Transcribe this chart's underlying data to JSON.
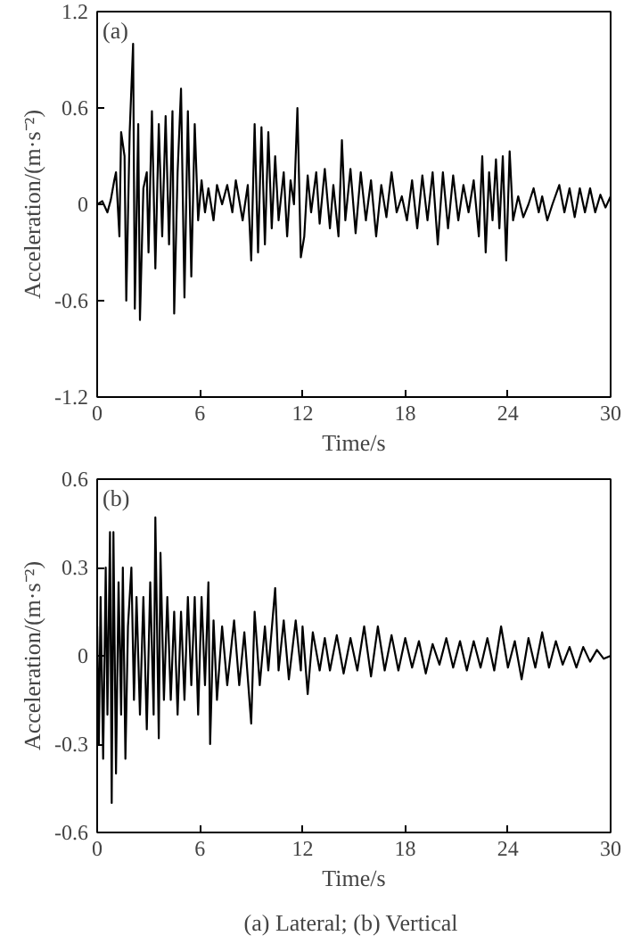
{
  "chart_data": [
    {
      "type": "line",
      "xlabel": "Time/s",
      "ylabel": "Acceleration/(m·s⁻²)",
      "annotations": [
        "(a)"
      ],
      "xlim": [
        0,
        30
      ],
      "ylim": [
        -1.2,
        1.2
      ],
      "xticks": [
        0,
        6,
        12,
        18,
        24,
        30
      ],
      "yticks": [
        -1.2,
        -0.6,
        0,
        0.6,
        1.2
      ],
      "grid": false,
      "marker": "none",
      "line_style": "solid",
      "series": [
        {
          "color": "#000000",
          "x": [
            0,
            0.3,
            0.6,
            0.8,
            1.0,
            1.1,
            1.3,
            1.4,
            1.6,
            1.7,
            1.9,
            2.1,
            2.2,
            2.4,
            2.5,
            2.7,
            2.9,
            3.0,
            3.2,
            3.4,
            3.6,
            3.8,
            4.0,
            4.2,
            4.4,
            4.5,
            4.7,
            4.9,
            5.1,
            5.3,
            5.5,
            5.7,
            5.9,
            6.1,
            6.3,
            6.5,
            6.8,
            7.0,
            7.3,
            7.6,
            7.9,
            8.1,
            8.5,
            8.8,
            9.0,
            9.2,
            9.4,
            9.6,
            9.8,
            10.0,
            10.2,
            10.4,
            10.6,
            10.9,
            11.1,
            11.3,
            11.5,
            11.7,
            11.9,
            12.1,
            12.3,
            12.5,
            12.8,
            13.0,
            13.3,
            13.6,
            13.8,
            14.1,
            14.3,
            14.5,
            14.8,
            15.1,
            15.4,
            15.7,
            16.0,
            16.3,
            16.6,
            16.9,
            17.2,
            17.5,
            17.8,
            18.1,
            18.4,
            18.7,
            19.0,
            19.3,
            19.6,
            19.9,
            20.2,
            20.5,
            20.8,
            21.1,
            21.4,
            21.7,
            22.0,
            22.3,
            22.5,
            22.7,
            22.9,
            23.1,
            23.3,
            23.5,
            23.7,
            23.9,
            24.1,
            24.3,
            24.6,
            24.9,
            25.2,
            25.5,
            25.8,
            26.0,
            26.3,
            26.6,
            27.0,
            27.3,
            27.6,
            27.9,
            28.2,
            28.5,
            28.8,
            29.1,
            29.4,
            29.7,
            30.0
          ],
          "values": [
            0,
            0.02,
            -0.05,
            0.03,
            0.15,
            0.2,
            -0.2,
            0.45,
            0.3,
            -0.6,
            0.45,
            1.0,
            -0.65,
            0.5,
            -0.72,
            0.1,
            0.2,
            -0.3,
            0.58,
            -0.4,
            0.5,
            -0.2,
            0.55,
            -0.25,
            0.58,
            -0.68,
            0.2,
            0.72,
            -0.58,
            0.58,
            -0.45,
            0.5,
            -0.1,
            0.15,
            -0.05,
            0.1,
            -0.1,
            0.12,
            0.0,
            0.12,
            -0.05,
            0.15,
            -0.1,
            0.12,
            -0.35,
            0.5,
            -0.3,
            0.48,
            -0.25,
            0.45,
            -0.15,
            0.3,
            -0.1,
            0.2,
            -0.2,
            0.15,
            0.0,
            0.6,
            -0.33,
            -0.2,
            0.18,
            -0.05,
            0.2,
            -0.12,
            0.22,
            -0.15,
            0.12,
            -0.2,
            0.4,
            -0.1,
            0.22,
            -0.18,
            0.2,
            -0.1,
            0.15,
            -0.2,
            0.12,
            -0.08,
            0.2,
            -0.05,
            0.05,
            -0.1,
            0.15,
            -0.15,
            0.18,
            -0.1,
            0.2,
            -0.25,
            0.2,
            -0.15,
            0.18,
            -0.1,
            0.12,
            -0.05,
            0.15,
            -0.2,
            0.3,
            -0.3,
            0.2,
            -0.1,
            0.28,
            -0.15,
            0.3,
            -0.35,
            0.33,
            -0.1,
            0.05,
            -0.08,
            0.0,
            0.1,
            -0.05,
            0.05,
            -0.1,
            0.0,
            0.12,
            -0.05,
            0.1,
            -0.08,
            0.1,
            -0.05,
            0.1,
            -0.05,
            0.06,
            -0.02,
            0.05
          ]
        }
      ]
    },
    {
      "type": "line",
      "xlabel": "Time/s",
      "ylabel": "Acceleration/(m·s⁻²)",
      "annotations": [
        "(b)",
        "(a)  Lateral; (b) Vertical"
      ],
      "xlim": [
        0,
        30
      ],
      "ylim": [
        -0.6,
        0.6
      ],
      "xticks": [
        0,
        6,
        12,
        18,
        24,
        30
      ],
      "yticks": [
        -0.6,
        -0.3,
        0,
        0.3,
        0.6
      ],
      "grid": false,
      "marker": "none",
      "line_style": "solid",
      "series": [
        {
          "color": "#000000",
          "x": [
            0,
            0.1,
            0.2,
            0.35,
            0.5,
            0.6,
            0.75,
            0.85,
            0.95,
            1.1,
            1.25,
            1.4,
            1.5,
            1.65,
            1.8,
            2.0,
            2.15,
            2.3,
            2.5,
            2.7,
            2.9,
            3.1,
            3.3,
            3.4,
            3.6,
            3.7,
            3.9,
            4.1,
            4.3,
            4.5,
            4.7,
            4.9,
            5.1,
            5.3,
            5.5,
            5.7,
            5.9,
            6.1,
            6.3,
            6.5,
            6.6,
            6.8,
            7.0,
            7.3,
            7.6,
            8.0,
            8.3,
            8.6,
            9.0,
            9.2,
            9.5,
            9.8,
            10.0,
            10.4,
            10.6,
            10.9,
            11.2,
            11.6,
            11.9,
            12.0,
            12.3,
            12.6,
            13.0,
            13.3,
            13.6,
            14.0,
            14.4,
            14.8,
            15.2,
            15.6,
            16.0,
            16.4,
            16.8,
            17.2,
            17.6,
            18.0,
            18.4,
            18.8,
            19.2,
            19.6,
            20.0,
            20.4,
            20.8,
            21.2,
            21.6,
            22.0,
            22.4,
            22.8,
            23.2,
            23.6,
            24.0,
            24.4,
            24.8,
            25.2,
            25.6,
            26.0,
            26.4,
            26.8,
            27.2,
            27.6,
            28.0,
            28.4,
            28.8,
            29.2,
            29.6,
            30.0
          ],
          "values": [
            0.1,
            -0.3,
            0.2,
            -0.35,
            0.3,
            -0.2,
            0.42,
            -0.5,
            0.42,
            -0.4,
            0.25,
            -0.2,
            0.3,
            -0.35,
            0.1,
            0.3,
            -0.15,
            0.2,
            -0.2,
            0.2,
            -0.25,
            0.25,
            -0.2,
            0.47,
            -0.28,
            0.35,
            -0.15,
            0.2,
            -0.15,
            0.15,
            -0.2,
            0.15,
            -0.15,
            0.2,
            -0.1,
            0.2,
            -0.2,
            0.2,
            -0.1,
            0.25,
            -0.3,
            0.12,
            -0.15,
            0.1,
            -0.1,
            0.12,
            -0.1,
            0.08,
            -0.23,
            0.15,
            -0.1,
            0.1,
            -0.05,
            0.23,
            -0.05,
            0.12,
            -0.08,
            0.12,
            -0.05,
            0.1,
            -0.13,
            0.08,
            -0.05,
            0.06,
            -0.05,
            0.07,
            -0.06,
            0.06,
            -0.05,
            0.1,
            -0.07,
            0.1,
            -0.05,
            0.07,
            -0.05,
            0.06,
            -0.04,
            0.05,
            -0.06,
            0.04,
            -0.03,
            0.06,
            -0.04,
            0.05,
            -0.05,
            0.05,
            -0.04,
            0.06,
            -0.05,
            0.1,
            -0.04,
            0.05,
            -0.08,
            0.06,
            -0.04,
            0.08,
            -0.04,
            0.05,
            -0.03,
            0.03,
            -0.04,
            0.03,
            -0.02,
            0.02,
            -0.01,
            0.0
          ]
        }
      ]
    }
  ]
}
